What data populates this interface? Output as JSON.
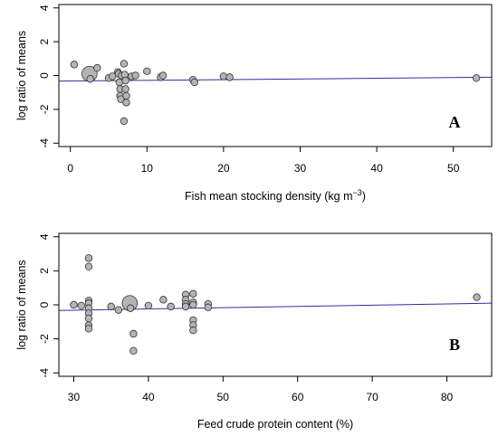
{
  "colors": {
    "points_fill": "#b4b4b4",
    "points_stroke": "#333333",
    "regression_line": "#2f2f9e"
  },
  "chart_data": [
    {
      "type": "scatter",
      "panel_label": "A",
      "xlabel_main": "Fish mean stocking density (kg m",
      "xlabel_sup": "−3",
      "xlabel_close": ")",
      "ylabel": "log ratio of means",
      "xlim": [
        -1.5,
        55
      ],
      "ylim": [
        -4.2,
        4.2
      ],
      "x_ticks": [
        0,
        10,
        20,
        30,
        40,
        50
      ],
      "y_ticks": [
        -4,
        -2,
        0,
        2,
        4
      ],
      "regression_line": {
        "x": [
          -1.5,
          55
        ],
        "y": [
          -0.33,
          -0.1
        ]
      },
      "points": [
        {
          "x": 0.5,
          "y": 0.65,
          "s": 1
        },
        {
          "x": 2.5,
          "y": 0.1,
          "s": 2.2
        },
        {
          "x": 2.6,
          "y": -0.2,
          "s": 1
        },
        {
          "x": 3.5,
          "y": 0.45,
          "s": 1
        },
        {
          "x": 5.0,
          "y": -0.15,
          "s": 1
        },
        {
          "x": 5.5,
          "y": -0.05,
          "s": 1
        },
        {
          "x": 6.2,
          "y": 0.2,
          "s": 1
        },
        {
          "x": 6.3,
          "y": 0.1,
          "s": 1
        },
        {
          "x": 6.4,
          "y": -0.4,
          "s": 1
        },
        {
          "x": 6.5,
          "y": -0.8,
          "s": 1
        },
        {
          "x": 6.5,
          "y": -1.2,
          "s": 1
        },
        {
          "x": 6.6,
          "y": -1.4,
          "s": 1
        },
        {
          "x": 6.7,
          "y": 0.0,
          "s": 1
        },
        {
          "x": 7.0,
          "y": 0.7,
          "s": 1
        },
        {
          "x": 7.1,
          "y": 0.05,
          "s": 1
        },
        {
          "x": 7.2,
          "y": -0.3,
          "s": 1
        },
        {
          "x": 7.2,
          "y": -0.8,
          "s": 1
        },
        {
          "x": 7.3,
          "y": -1.2,
          "s": 1
        },
        {
          "x": 7.3,
          "y": -1.6,
          "s": 1
        },
        {
          "x": 7.0,
          "y": -2.7,
          "s": 1
        },
        {
          "x": 8.0,
          "y": -0.05,
          "s": 1
        },
        {
          "x": 8.5,
          "y": 0.0,
          "s": 1
        },
        {
          "x": 10.0,
          "y": 0.25,
          "s": 1
        },
        {
          "x": 11.8,
          "y": -0.1,
          "s": 1
        },
        {
          "x": 12.1,
          "y": 0.0,
          "s": 1
        },
        {
          "x": 16.0,
          "y": -0.25,
          "s": 1
        },
        {
          "x": 16.2,
          "y": -0.4,
          "s": 1
        },
        {
          "x": 20.0,
          "y": -0.05,
          "s": 1
        },
        {
          "x": 20.8,
          "y": -0.1,
          "s": 1
        },
        {
          "x": 53.0,
          "y": -0.15,
          "s": 1
        }
      ]
    },
    {
      "type": "scatter",
      "panel_label": "B",
      "xlabel_main": "Feed crude protein content (%)",
      "xlabel_sup": "",
      "xlabel_close": "",
      "ylabel": "log ratio of means",
      "xlim": [
        28,
        86
      ],
      "ylim": [
        -4.2,
        4.2
      ],
      "x_ticks": [
        30,
        40,
        50,
        60,
        70,
        80
      ],
      "y_ticks": [
        -4,
        -2,
        0,
        2,
        4
      ],
      "regression_line": {
        "x": [
          28,
          86
        ],
        "y": [
          -0.33,
          0.1
        ]
      },
      "points": [
        {
          "x": 30.0,
          "y": 0.0,
          "s": 1
        },
        {
          "x": 31.0,
          "y": -0.05,
          "s": 1
        },
        {
          "x": 32.0,
          "y": 2.75,
          "s": 1
        },
        {
          "x": 32.0,
          "y": 2.25,
          "s": 1
        },
        {
          "x": 32.0,
          "y": 0.25,
          "s": 1
        },
        {
          "x": 32.0,
          "y": 0.1,
          "s": 1
        },
        {
          "x": 32.0,
          "y": -0.2,
          "s": 1
        },
        {
          "x": 32.0,
          "y": -0.5,
          "s": 1
        },
        {
          "x": 32.0,
          "y": -0.8,
          "s": 1
        },
        {
          "x": 32.0,
          "y": -1.2,
          "s": 1
        },
        {
          "x": 32.0,
          "y": -1.4,
          "s": 1
        },
        {
          "x": 35.0,
          "y": -0.1,
          "s": 1
        },
        {
          "x": 36.0,
          "y": -0.3,
          "s": 1
        },
        {
          "x": 37.0,
          "y": 0.05,
          "s": 1
        },
        {
          "x": 37.5,
          "y": 0.1,
          "s": 2.2
        },
        {
          "x": 37.6,
          "y": -0.2,
          "s": 1
        },
        {
          "x": 38.0,
          "y": -1.7,
          "s": 1
        },
        {
          "x": 38.0,
          "y": -2.7,
          "s": 1
        },
        {
          "x": 40.0,
          "y": -0.05,
          "s": 1
        },
        {
          "x": 42.0,
          "y": 0.3,
          "s": 1
        },
        {
          "x": 43.0,
          "y": -0.1,
          "s": 1
        },
        {
          "x": 45.0,
          "y": 0.6,
          "s": 1
        },
        {
          "x": 45.0,
          "y": 0.3,
          "s": 1
        },
        {
          "x": 45.0,
          "y": 0.05,
          "s": 1
        },
        {
          "x": 45.0,
          "y": -0.1,
          "s": 1
        },
        {
          "x": 46.0,
          "y": 0.65,
          "s": 1
        },
        {
          "x": 46.0,
          "y": 0.15,
          "s": 1
        },
        {
          "x": 46.0,
          "y": 0.0,
          "s": 1
        },
        {
          "x": 46.0,
          "y": -0.9,
          "s": 1
        },
        {
          "x": 46.0,
          "y": -1.2,
          "s": 1
        },
        {
          "x": 46.0,
          "y": -1.5,
          "s": 1
        },
        {
          "x": 48.0,
          "y": 0.05,
          "s": 1
        },
        {
          "x": 48.0,
          "y": -0.15,
          "s": 1
        },
        {
          "x": 84.0,
          "y": 0.45,
          "s": 1
        }
      ]
    }
  ]
}
